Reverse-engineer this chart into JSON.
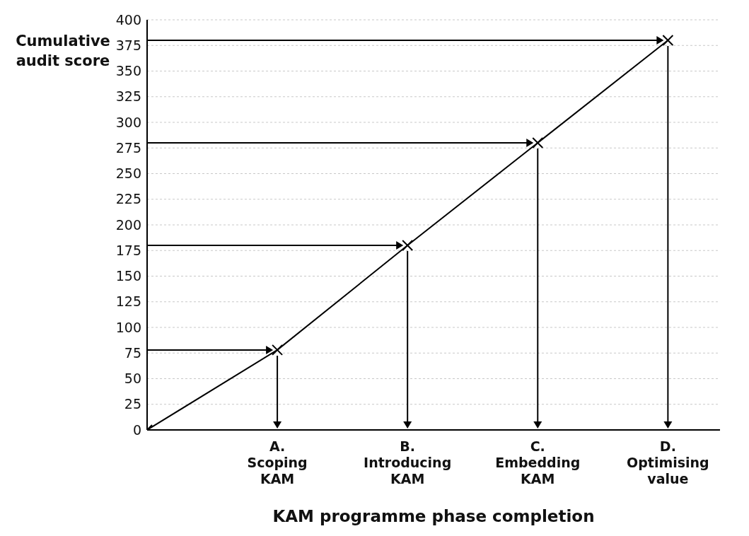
{
  "chart_data": {
    "type": "line",
    "ylabel": "Cumulative audit score",
    "xlabel": "KAM programme phase completion",
    "categories": [
      null,
      "A. Scoping KAM",
      "B. Introducing KAM",
      "C. Embedding KAM",
      "D. Optimising value"
    ],
    "values": [
      0,
      78,
      180,
      280,
      380
    ],
    "color": "#000000",
    "marker": "cross",
    "line_style": "solid",
    "ylim": [
      0,
      400
    ],
    "yticks": [
      0,
      25,
      50,
      75,
      100,
      125,
      150,
      175,
      200,
      225,
      250,
      275,
      300,
      325,
      350,
      375,
      400
    ],
    "grid": "y"
  }
}
